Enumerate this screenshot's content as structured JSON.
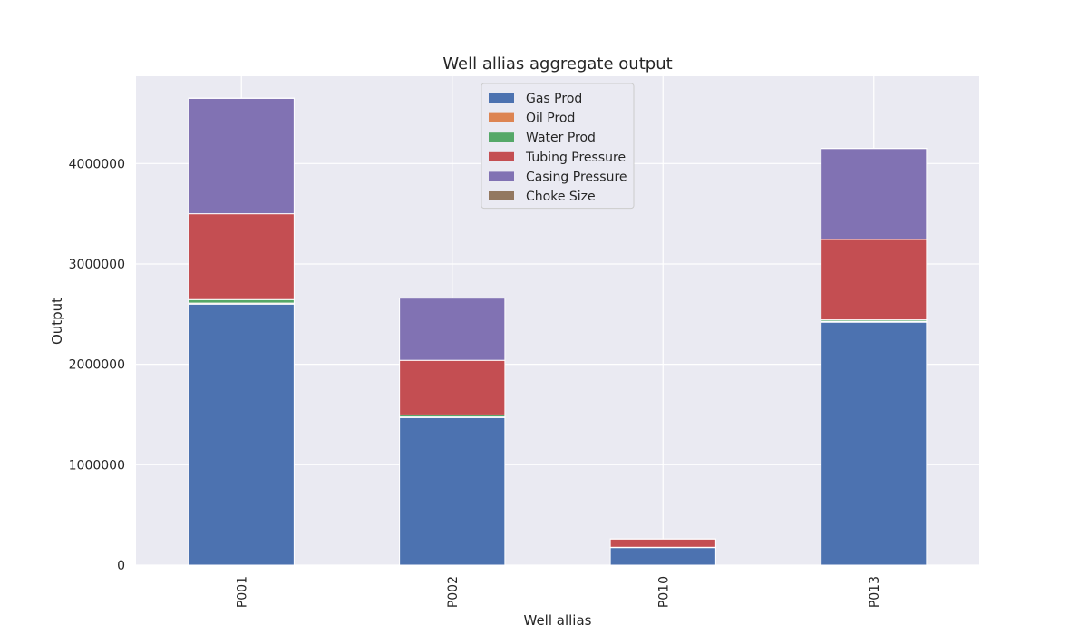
{
  "chart_data": {
    "type": "bar",
    "stacked": true,
    "title": "Well allias aggregate output",
    "xlabel": "Well allias",
    "ylabel": "Output",
    "categories": [
      "P001",
      "P002",
      "P010",
      "P013"
    ],
    "ylim": [
      0,
      4870000
    ],
    "yticks": [
      0,
      1000000,
      2000000,
      3000000,
      4000000
    ],
    "ytick_labels": [
      "0",
      "1000000",
      "2000000",
      "3000000",
      "4000000"
    ],
    "grid": true,
    "legend_position": "top-center",
    "series": [
      {
        "name": "Gas Prod",
        "color": "#4c72b0",
        "values": [
          2600000,
          1470000,
          175000,
          2420000
        ]
      },
      {
        "name": "Oil Prod",
        "color": "#dd8452",
        "values": [
          10000,
          6000,
          1000,
          8000
        ]
      },
      {
        "name": "Water Prod",
        "color": "#55a868",
        "values": [
          35000,
          20000,
          2000,
          15000
        ]
      },
      {
        "name": "Tubing Pressure",
        "color": "#c44e52",
        "values": [
          855000,
          544000,
          82000,
          802000
        ]
      },
      {
        "name": "Casing Pressure",
        "color": "#8172b3",
        "values": [
          1150000,
          620000,
          0,
          905000
        ]
      },
      {
        "name": "Choke Size",
        "color": "#937860",
        "values": [
          2000,
          1000,
          500,
          1500
        ]
      }
    ]
  }
}
